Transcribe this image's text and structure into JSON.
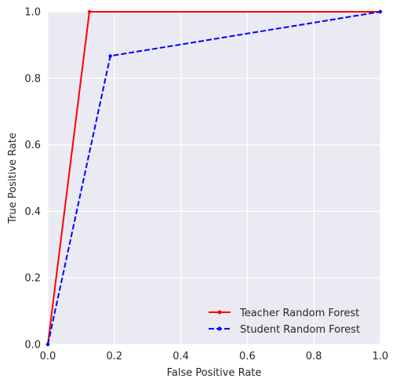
{
  "chart_data": {
    "type": "line",
    "title": "",
    "xlabel": "False Positive Rate",
    "ylabel": "True Positive Rate",
    "xlim": [
      0.0,
      1.0
    ],
    "ylim": [
      0.0,
      1.0
    ],
    "xticks": [
      "0.0",
      "0.2",
      "0.4",
      "0.6",
      "0.8",
      "1.0"
    ],
    "yticks": [
      "0.0",
      "0.2",
      "0.4",
      "0.6",
      "0.8",
      "1.0"
    ],
    "grid": true,
    "legend_position": "lower-right",
    "series": [
      {
        "name": "Teacher Random Forest",
        "color": "#ff0000",
        "line_style": "solid",
        "marker": "point",
        "x": [
          0.0,
          0.125,
          1.0
        ],
        "y": [
          0.0,
          1.0,
          1.0
        ]
      },
      {
        "name": "Student Random Forest",
        "color": "#0000ff",
        "line_style": "dashed",
        "marker": "point",
        "x": [
          0.0,
          0.188,
          1.0
        ],
        "y": [
          0.0,
          0.867,
          1.0
        ]
      }
    ]
  }
}
